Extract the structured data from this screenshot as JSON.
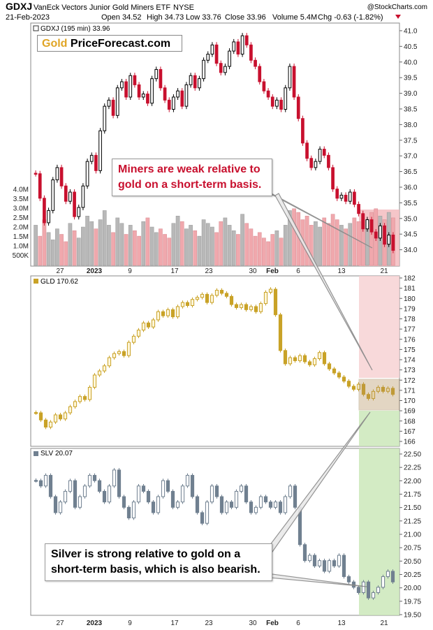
{
  "header": {
    "ticker": "GDXJ",
    "name": "VanEck Vectors Junior Gold Miners ETF",
    "exchange": "NYSE",
    "copyright": "@StockCharts.com",
    "date": "21-Feb-2023",
    "open": "Open 34.52",
    "high": "High 34.73",
    "low": "Low 33.76",
    "close": "Close 33.96",
    "volume": "Volume 5.4M",
    "chg": "Chg -0.63 (-1.82%)"
  },
  "logo": {
    "gold": "Gold",
    "rest": "PriceForecast.com"
  },
  "callouts": {
    "miners": "Miners are weak relative to gold on a short-term basis.",
    "silver": "Silver is strong relative to gold on a short-term basis, which is also bearish."
  },
  "colors": {
    "up": "#000000",
    "gdxj_down": "#c8102e",
    "gld": "#c9a227",
    "slv": "#708090",
    "red_zone": "#f2b8bc",
    "green_zone": "#b9e0a5"
  },
  "x_ticks": [
    "27",
    "2023",
    "9",
    "17",
    "23",
    "30",
    "Feb",
    "6",
    "13",
    "21"
  ],
  "chart_data": [
    {
      "type": "candlestick",
      "title": "GDXJ (195 min) 33.96",
      "ylim": [
        33.5,
        41.2
      ],
      "yticks": [
        "41.0",
        "40.5",
        "40.0",
        "39.5",
        "39.0",
        "38.5",
        "38.0",
        "37.5",
        "37.0",
        "36.5",
        "36.0",
        "35.5",
        "35.0",
        "34.5",
        "34.0"
      ],
      "volume_ticks": [
        "4.0M",
        "3.5M",
        "3.0M",
        "2.5M",
        "2.0M",
        "1.5M",
        "1.0M",
        "500K"
      ],
      "close": [
        36.4,
        35.6,
        34.8,
        35.2,
        36.2,
        36.6,
        36.0,
        35.5,
        35.8,
        35.0,
        35.3,
        36.0,
        36.8,
        37.0,
        36.5,
        37.8,
        38.6,
        38.8,
        38.3,
        39.2,
        39.4,
        38.9,
        39.6,
        39.3,
        38.9,
        39.0,
        38.7,
        39.5,
        39.8,
        39.2,
        38.8,
        38.5,
        38.9,
        39.1,
        38.6,
        39.3,
        39.6,
        39.2,
        39.5,
        40.1,
        40.3,
        40.6,
        40.0,
        39.7,
        39.9,
        40.4,
        40.7,
        40.3,
        40.9,
        40.6,
        40.1,
        39.9,
        39.4,
        39.1,
        38.9,
        38.6,
        38.8,
        38.5,
        39.2,
        39.9,
        38.9,
        38.2,
        37.4,
        36.9,
        36.6,
        36.8,
        37.2,
        37.0,
        36.6,
        35.9,
        35.6,
        35.7,
        35.5,
        35.8,
        35.4,
        35.1,
        34.6,
        34.9,
        34.5,
        34.3,
        34.7,
        34.1,
        34.4,
        33.9
      ],
      "volume_millions": [
        2.2,
        1.6,
        2.5,
        1.8,
        1.4,
        2.0,
        1.7,
        1.3,
        2.3,
        1.9,
        1.5,
        2.1,
        2.7,
        2.4,
        2.0,
        2.5,
        3.0,
        2.2,
        1.8,
        2.6,
        2.3,
        1.7,
        2.2,
        1.9,
        1.6,
        2.4,
        2.6,
        2.1,
        1.8,
        2.0,
        1.7,
        1.5,
        2.3,
        2.7,
        2.4,
        2.0,
        2.2,
        1.9,
        1.6,
        2.5,
        2.3,
        2.1,
        1.8,
        2.4,
        2.6,
        2.2,
        1.9,
        1.7,
        2.8,
        2.3,
        2.0,
        1.6,
        1.8,
        1.5,
        1.3,
        1.7,
        1.9,
        1.5,
        2.2,
        3.0,
        3.1,
        2.9,
        2.5,
        2.7,
        2.2,
        2.4,
        2.1,
        2.6,
        2.3,
        2.8,
        2.5,
        2.2,
        2.0,
        2.3,
        2.6,
        2.4,
        2.8,
        2.5,
        2.9,
        3.1,
        2.7,
        2.5,
        2.9,
        2.6
      ]
    },
    {
      "type": "candlestick",
      "title": "GLD 170.62",
      "ylim": [
        166,
        182
      ],
      "yticks": [
        "182",
        "181",
        "180",
        "179",
        "178",
        "177",
        "176",
        "175",
        "174",
        "173",
        "172",
        "171",
        "170",
        "169",
        "168",
        "167",
        "166"
      ],
      "close": [
        168.8,
        168.1,
        167.4,
        167.9,
        168.6,
        168.2,
        168.8,
        169.4,
        169.9,
        170.4,
        170.1,
        171.3,
        172.5,
        172.9,
        173.4,
        174.2,
        174.6,
        174.8,
        174.4,
        175.7,
        176.3,
        176.9,
        177.6,
        177.2,
        177.9,
        178.7,
        178.3,
        178.9,
        178.2,
        179.2,
        179.6,
        179.3,
        179.9,
        180.1,
        180.4,
        179.6,
        180.3,
        180.8,
        180.5,
        180.2,
        179.4,
        179.1,
        179.4,
        178.9,
        179.2,
        178.7,
        179.5,
        180.6,
        180.9,
        178.4,
        174.9,
        173.6,
        174.2,
        173.9,
        174.4,
        173.8,
        173.5,
        174.1,
        174.7,
        173.6,
        173.1,
        172.7,
        172.3,
        171.9,
        171.4,
        171.1,
        171.6,
        170.6,
        170.2,
        170.9,
        171.3,
        170.9,
        171.2,
        170.6
      ],
      "annotation_box": [
        169.1,
        172.1
      ]
    },
    {
      "type": "candlestick",
      "title": "SLV 20.07",
      "ylim": [
        19.5,
        22.5
      ],
      "yticks": [
        "22.50",
        "22.25",
        "22.00",
        "21.75",
        "21.50",
        "21.25",
        "21.00",
        "20.75",
        "20.50",
        "20.25",
        "20.00",
        "19.75",
        "19.50"
      ],
      "close": [
        22.0,
        21.9,
        22.1,
        21.7,
        21.4,
        21.6,
        21.8,
        22.0,
        21.5,
        21.7,
        21.9,
        22.1,
        22.0,
        21.8,
        21.6,
        21.9,
        22.2,
        21.7,
        21.5,
        21.3,
        21.6,
        21.9,
        21.8,
        21.6,
        21.4,
        21.7,
        22.0,
        21.8,
        21.5,
        21.6,
        21.9,
        22.1,
        21.7,
        21.4,
        21.2,
        21.6,
        21.9,
        21.7,
        21.4,
        21.6,
        21.5,
        21.8,
        21.9,
        21.6,
        21.4,
        21.5,
        21.7,
        21.6,
        21.5,
        21.6,
        21.4,
        21.7,
        21.9,
        21.5,
        20.8,
        20.5,
        20.6,
        20.4,
        20.5,
        20.3,
        20.5,
        20.4,
        20.6,
        20.2,
        20.1,
        20.0,
        19.9,
        20.1,
        19.8,
        19.9,
        20.0,
        20.2,
        20.3,
        20.1
      ]
    }
  ]
}
